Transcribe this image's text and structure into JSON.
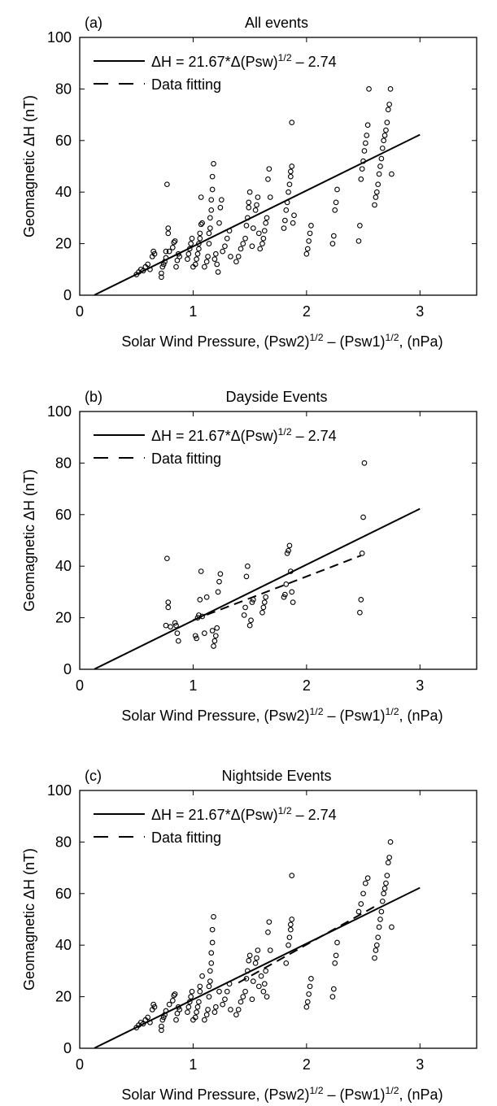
{
  "chart_data": [
    {
      "type": "scatter",
      "panel_label": "(a)",
      "title": "All events",
      "ylabel": "Geomagnetic ΔH (nT)",
      "xlabel": {
        "base": "Solar Wind Pressure, (Psw2)",
        "sup1": "1/2",
        "mid": " – (Psw1)",
        "sup2": "1/2",
        "tail": ",  (nPa)"
      },
      "xlim": [
        0,
        3.5
      ],
      "ylim": [
        0,
        100
      ],
      "xticks": [
        0,
        1,
        2,
        3
      ],
      "yticks": [
        0,
        20,
        40,
        60,
        80,
        100
      ],
      "grid": false,
      "legend_position": "top-left",
      "legend": [
        {
          "style": "solid",
          "label": {
            "base": "ΔH = 21.67*Δ(Psw)",
            "sup": "1/2",
            "tail": " – 2.74"
          }
        },
        {
          "style": "dashed",
          "label": {
            "base": "Data fitting"
          }
        }
      ],
      "model_line": {
        "slope": 21.67,
        "intercept": -2.74,
        "x": [
          0.13,
          3.0
        ]
      },
      "fit_line": null,
      "points": [
        [
          0.5,
          8
        ],
        [
          0.52,
          9
        ],
        [
          0.54,
          10
        ],
        [
          0.56,
          9.5
        ],
        [
          0.58,
          11
        ],
        [
          0.6,
          12
        ],
        [
          0.62,
          10
        ],
        [
          0.64,
          15
        ],
        [
          0.65,
          17
        ],
        [
          0.66,
          16
        ],
        [
          0.72,
          7
        ],
        [
          0.72,
          8.5
        ],
        [
          0.73,
          11
        ],
        [
          0.74,
          12
        ],
        [
          0.75,
          13
        ],
        [
          0.76,
          14.5
        ],
        [
          0.76,
          17
        ],
        [
          0.77,
          43
        ],
        [
          0.78,
          24
        ],
        [
          0.78,
          26
        ],
        [
          0.79,
          17
        ],
        [
          0.82,
          18.5
        ],
        [
          0.83,
          20.5
        ],
        [
          0.84,
          21
        ],
        [
          0.85,
          11
        ],
        [
          0.86,
          13.5
        ],
        [
          0.87,
          16
        ],
        [
          0.88,
          15
        ],
        [
          0.95,
          14
        ],
        [
          0.96,
          16
        ],
        [
          0.97,
          18
        ],
        [
          0.98,
          20
        ],
        [
          0.99,
          22
        ],
        [
          1.0,
          11
        ],
        [
          1.02,
          12
        ],
        [
          1.03,
          14
        ],
        [
          1.04,
          16
        ],
        [
          1.05,
          18
        ],
        [
          1.05,
          20
        ],
        [
          1.06,
          22
        ],
        [
          1.06,
          24
        ],
        [
          1.07,
          27.5
        ],
        [
          1.07,
          38
        ],
        [
          1.08,
          28
        ],
        [
          1.1,
          11
        ],
        [
          1.12,
          13
        ],
        [
          1.13,
          15
        ],
        [
          1.14,
          20
        ],
        [
          1.14,
          24
        ],
        [
          1.15,
          26
        ],
        [
          1.15,
          30
        ],
        [
          1.16,
          33
        ],
        [
          1.16,
          37
        ],
        [
          1.17,
          41
        ],
        [
          1.17,
          46
        ],
        [
          1.18,
          51
        ],
        [
          1.19,
          14
        ],
        [
          1.2,
          16
        ],
        [
          1.21,
          12
        ],
        [
          1.22,
          9
        ],
        [
          1.23,
          28
        ],
        [
          1.24,
          34
        ],
        [
          1.25,
          37
        ],
        [
          1.26,
          17
        ],
        [
          1.28,
          19
        ],
        [
          1.3,
          22
        ],
        [
          1.32,
          25
        ],
        [
          1.33,
          15
        ],
        [
          1.38,
          13
        ],
        [
          1.4,
          15
        ],
        [
          1.42,
          18
        ],
        [
          1.44,
          20
        ],
        [
          1.46,
          22
        ],
        [
          1.47,
          27
        ],
        [
          1.48,
          30
        ],
        [
          1.49,
          34
        ],
        [
          1.49,
          36
        ],
        [
          1.5,
          40
        ],
        [
          1.52,
          19
        ],
        [
          1.53,
          26
        ],
        [
          1.55,
          33
        ],
        [
          1.56,
          35
        ],
        [
          1.57,
          38
        ],
        [
          1.58,
          24
        ],
        [
          1.59,
          18
        ],
        [
          1.61,
          20
        ],
        [
          1.62,
          22
        ],
        [
          1.63,
          25
        ],
        [
          1.64,
          28
        ],
        [
          1.65,
          30
        ],
        [
          1.66,
          45
        ],
        [
          1.67,
          49
        ],
        [
          1.68,
          38
        ],
        [
          1.8,
          26
        ],
        [
          1.81,
          29
        ],
        [
          1.82,
          33
        ],
        [
          1.83,
          36
        ],
        [
          1.84,
          40
        ],
        [
          1.85,
          43
        ],
        [
          1.86,
          46
        ],
        [
          1.86,
          48
        ],
        [
          1.87,
          50
        ],
        [
          1.87,
          67
        ],
        [
          1.88,
          28
        ],
        [
          1.89,
          31
        ],
        [
          2.0,
          16
        ],
        [
          2.01,
          18
        ],
        [
          2.02,
          21
        ],
        [
          2.03,
          24
        ],
        [
          2.04,
          27
        ],
        [
          2.23,
          20
        ],
        [
          2.24,
          23
        ],
        [
          2.25,
          33
        ],
        [
          2.26,
          36
        ],
        [
          2.27,
          41
        ],
        [
          2.46,
          21
        ],
        [
          2.47,
          27
        ],
        [
          2.48,
          45
        ],
        [
          2.49,
          49
        ],
        [
          2.5,
          52
        ],
        [
          2.51,
          56
        ],
        [
          2.52,
          59
        ],
        [
          2.53,
          62
        ],
        [
          2.54,
          66
        ],
        [
          2.55,
          80
        ],
        [
          2.6,
          35
        ],
        [
          2.61,
          38
        ],
        [
          2.62,
          40
        ],
        [
          2.63,
          43
        ],
        [
          2.64,
          47
        ],
        [
          2.65,
          50
        ],
        [
          2.66,
          53
        ],
        [
          2.67,
          57
        ],
        [
          2.68,
          60
        ],
        [
          2.69,
          62
        ],
        [
          2.7,
          64
        ],
        [
          2.71,
          67
        ],
        [
          2.72,
          72
        ],
        [
          2.73,
          74
        ],
        [
          2.74,
          80
        ],
        [
          2.75,
          47
        ]
      ]
    },
    {
      "type": "scatter",
      "panel_label": "(b)",
      "title": "Dayside Events",
      "ylabel": "Geomagnetic ΔH (nT)",
      "xlabel": {
        "base": "Solar Wind Pressure, (Psw2)",
        "sup1": "1/2",
        "mid": " – (Psw1)",
        "sup2": "1/2",
        "tail": ",  (nPa)"
      },
      "xlim": [
        0,
        3.5
      ],
      "ylim": [
        0,
        100
      ],
      "xticks": [
        0,
        1,
        2,
        3
      ],
      "yticks": [
        0,
        20,
        40,
        60,
        80,
        100
      ],
      "grid": false,
      "legend_position": "top-left",
      "legend": [
        {
          "style": "solid",
          "label": {
            "base": "ΔH = 21.67*Δ(Psw)",
            "sup": "1/2",
            "tail": " – 2.74"
          }
        },
        {
          "style": "dashed",
          "label": {
            "base": "Data fitting"
          }
        }
      ],
      "model_line": {
        "slope": 21.67,
        "intercept": -2.74,
        "x": [
          0.13,
          3.0
        ]
      },
      "fit_line": {
        "slope": 16.9,
        "intercept": 2.2,
        "x": [
          1.0,
          2.48
        ]
      },
      "points": [
        [
          0.76,
          17
        ],
        [
          0.77,
          43
        ],
        [
          0.78,
          24
        ],
        [
          0.78,
          26
        ],
        [
          0.8,
          16.5
        ],
        [
          0.84,
          18
        ],
        [
          0.85,
          17
        ],
        [
          0.86,
          14
        ],
        [
          0.87,
          11
        ],
        [
          1.02,
          13
        ],
        [
          1.03,
          12
        ],
        [
          1.04,
          20
        ],
        [
          1.05,
          21
        ],
        [
          1.06,
          27
        ],
        [
          1.07,
          38
        ],
        [
          1.08,
          20.5
        ],
        [
          1.1,
          14
        ],
        [
          1.12,
          28
        ],
        [
          1.17,
          15
        ],
        [
          1.18,
          9
        ],
        [
          1.19,
          11
        ],
        [
          1.2,
          13
        ],
        [
          1.21,
          16
        ],
        [
          1.22,
          30
        ],
        [
          1.23,
          34
        ],
        [
          1.24,
          37
        ],
        [
          1.45,
          21
        ],
        [
          1.46,
          24
        ],
        [
          1.47,
          36
        ],
        [
          1.48,
          40
        ],
        [
          1.5,
          17
        ],
        [
          1.51,
          19
        ],
        [
          1.52,
          26
        ],
        [
          1.53,
          27
        ],
        [
          1.61,
          22
        ],
        [
          1.62,
          24
        ],
        [
          1.63,
          26
        ],
        [
          1.64,
          28
        ],
        [
          1.8,
          28
        ],
        [
          1.81,
          29
        ],
        [
          1.82,
          33
        ],
        [
          1.83,
          45
        ],
        [
          1.84,
          46
        ],
        [
          1.85,
          48
        ],
        [
          1.86,
          38
        ],
        [
          1.87,
          30
        ],
        [
          1.88,
          26
        ],
        [
          2.47,
          22
        ],
        [
          2.48,
          27
        ],
        [
          2.49,
          45
        ],
        [
          2.5,
          59
        ],
        [
          2.51,
          80
        ]
      ]
    },
    {
      "type": "scatter",
      "panel_label": "(c)",
      "title": "Nightside Events",
      "ylabel": "Geomagnetic ΔH (nT)",
      "xlabel": {
        "base": "Solar Wind Pressure, (Psw2)",
        "sup1": "1/2",
        "mid": " – (Psw1)",
        "sup2": "1/2",
        "tail": ",  (nPa)"
      },
      "xlim": [
        0,
        3.5
      ],
      "ylim": [
        0,
        100
      ],
      "xticks": [
        0,
        1,
        2,
        3
      ],
      "yticks": [
        0,
        20,
        40,
        60,
        80,
        100
      ],
      "grid": false,
      "legend_position": "top-left",
      "legend": [
        {
          "style": "solid",
          "label": {
            "base": "ΔH = 21.67*Δ(Psw)",
            "sup": "1/2",
            "tail": " – 2.74"
          }
        },
        {
          "style": "dashed",
          "label": {
            "base": "Data fitting"
          }
        }
      ],
      "model_line": {
        "slope": 21.67,
        "intercept": -2.74,
        "x": [
          0.13,
          3.0
        ]
      },
      "fit_line": {
        "slope": 24.6,
        "intercept": -9.0,
        "x": [
          1.4,
          2.62
        ]
      },
      "points": [
        [
          0.5,
          8
        ],
        [
          0.52,
          9
        ],
        [
          0.54,
          10
        ],
        [
          0.56,
          9.5
        ],
        [
          0.58,
          11
        ],
        [
          0.6,
          12
        ],
        [
          0.62,
          10
        ],
        [
          0.64,
          15
        ],
        [
          0.65,
          17
        ],
        [
          0.66,
          16
        ],
        [
          0.72,
          7
        ],
        [
          0.72,
          8.5
        ],
        [
          0.73,
          11
        ],
        [
          0.74,
          12
        ],
        [
          0.75,
          13
        ],
        [
          0.76,
          14.5
        ],
        [
          0.79,
          17
        ],
        [
          0.82,
          18.5
        ],
        [
          0.83,
          20.5
        ],
        [
          0.84,
          21
        ],
        [
          0.85,
          11
        ],
        [
          0.86,
          13.5
        ],
        [
          0.87,
          16
        ],
        [
          0.88,
          15
        ],
        [
          0.95,
          14
        ],
        [
          0.96,
          16
        ],
        [
          0.97,
          18
        ],
        [
          0.98,
          20
        ],
        [
          0.99,
          22
        ],
        [
          1.0,
          11
        ],
        [
          1.02,
          12
        ],
        [
          1.03,
          14
        ],
        [
          1.04,
          16
        ],
        [
          1.05,
          18
        ],
        [
          1.06,
          22
        ],
        [
          1.06,
          24
        ],
        [
          1.08,
          28
        ],
        [
          1.1,
          11
        ],
        [
          1.12,
          13
        ],
        [
          1.13,
          15
        ],
        [
          1.14,
          20
        ],
        [
          1.14,
          24
        ],
        [
          1.15,
          26
        ],
        [
          1.15,
          30
        ],
        [
          1.16,
          33
        ],
        [
          1.16,
          37
        ],
        [
          1.17,
          41
        ],
        [
          1.17,
          46
        ],
        [
          1.18,
          51
        ],
        [
          1.19,
          14
        ],
        [
          1.2,
          16
        ],
        [
          1.23,
          22
        ],
        [
          1.26,
          17
        ],
        [
          1.28,
          19
        ],
        [
          1.3,
          22
        ],
        [
          1.32,
          25
        ],
        [
          1.33,
          15
        ],
        [
          1.38,
          13
        ],
        [
          1.4,
          15
        ],
        [
          1.42,
          18
        ],
        [
          1.44,
          20
        ],
        [
          1.46,
          22
        ],
        [
          1.47,
          27
        ],
        [
          1.48,
          30
        ],
        [
          1.49,
          34
        ],
        [
          1.5,
          36
        ],
        [
          1.52,
          19
        ],
        [
          1.53,
          26
        ],
        [
          1.55,
          33
        ],
        [
          1.56,
          35
        ],
        [
          1.57,
          38
        ],
        [
          1.58,
          24
        ],
        [
          1.6,
          28
        ],
        [
          1.62,
          22
        ],
        [
          1.63,
          25
        ],
        [
          1.64,
          30
        ],
        [
          1.65,
          20
        ],
        [
          1.66,
          45
        ],
        [
          1.67,
          49
        ],
        [
          1.68,
          38
        ],
        [
          1.82,
          33
        ],
        [
          1.84,
          40
        ],
        [
          1.85,
          43
        ],
        [
          1.86,
          46
        ],
        [
          1.86,
          48
        ],
        [
          1.87,
          50
        ],
        [
          1.87,
          67
        ],
        [
          2.0,
          16
        ],
        [
          2.01,
          18
        ],
        [
          2.02,
          21
        ],
        [
          2.03,
          24
        ],
        [
          2.04,
          27
        ],
        [
          2.23,
          20
        ],
        [
          2.24,
          23
        ],
        [
          2.25,
          33
        ],
        [
          2.26,
          36
        ],
        [
          2.27,
          41
        ],
        [
          2.46,
          53
        ],
        [
          2.48,
          56
        ],
        [
          2.5,
          60
        ],
        [
          2.52,
          64
        ],
        [
          2.54,
          66
        ],
        [
          2.6,
          35
        ],
        [
          2.61,
          38
        ],
        [
          2.62,
          40
        ],
        [
          2.63,
          43
        ],
        [
          2.64,
          47
        ],
        [
          2.65,
          50
        ],
        [
          2.66,
          53
        ],
        [
          2.67,
          57
        ],
        [
          2.68,
          60
        ],
        [
          2.69,
          62
        ],
        [
          2.7,
          64
        ],
        [
          2.71,
          67
        ],
        [
          2.72,
          72
        ],
        [
          2.73,
          74
        ],
        [
          2.74,
          80
        ],
        [
          2.75,
          47
        ]
      ]
    }
  ]
}
